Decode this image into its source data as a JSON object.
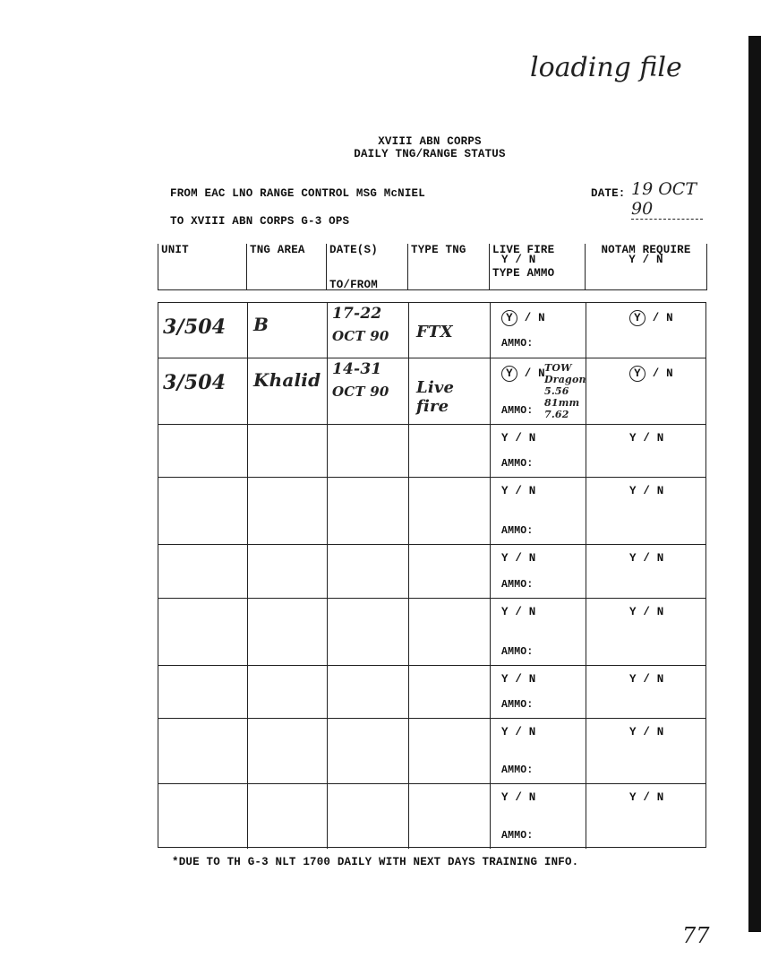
{
  "annotation_top": "loading file",
  "header": {
    "line1": "XVIII ABN CORPS",
    "line2": "DAILY TNG/RANGE STATUS"
  },
  "from": "FROM EAC LNO RANGE CONTROL MSG McNIEL",
  "to": "TO XVIII ABN CORPS G-3 OPS",
  "date_label": "DATE:",
  "date_value": "19 OCT 90",
  "columns": [
    {
      "line1": "UNIT",
      "line2": "",
      "line3": ""
    },
    {
      "line1": "TNG AREA",
      "line2": "",
      "line3": ""
    },
    {
      "line1": "DATE(S)",
      "line2": "",
      "line3": "TO/FROM"
    },
    {
      "line1": "TYPE TNG",
      "line2": "",
      "line3": ""
    },
    {
      "line1": "LIVE FIRE",
      "line2": "Y / N",
      "line3": "TYPE AMMO"
    },
    {
      "line1": "NOTAM REQUIRE",
      "line2": "Y / N",
      "line3": ""
    }
  ],
  "yn_y": "Y",
  "yn_sep": " / N",
  "ammo_label": "AMMO:",
  "rows": [
    {
      "unit": "3/504",
      "area": "B",
      "dates1": "17-22",
      "dates2": "OCT 90",
      "type": "FTX",
      "live_fire": "Y",
      "ammo": "",
      "notam": "Y"
    },
    {
      "unit": "3/504",
      "area": "Khalid",
      "dates1": "14-31",
      "dates2": "OCT 90",
      "type": "Live fire",
      "live_fire": "Y",
      "ammo": "TOW Dragon 5.56 81mm 7.62",
      "notam": "Y"
    },
    {
      "unit": "",
      "area": "",
      "dates1": "",
      "dates2": "",
      "type": "",
      "live_fire": "",
      "ammo": "",
      "notam": ""
    },
    {
      "unit": "",
      "area": "",
      "dates1": "",
      "dates2": "",
      "type": "",
      "live_fire": "",
      "ammo": "",
      "notam": ""
    },
    {
      "unit": "",
      "area": "",
      "dates1": "",
      "dates2": "",
      "type": "",
      "live_fire": "",
      "ammo": "",
      "notam": ""
    },
    {
      "unit": "",
      "area": "",
      "dates1": "",
      "dates2": "",
      "type": "",
      "live_fire": "",
      "ammo": "",
      "notam": ""
    },
    {
      "unit": "",
      "area": "",
      "dates1": "",
      "dates2": "",
      "type": "",
      "live_fire": "",
      "ammo": "",
      "notam": ""
    },
    {
      "unit": "",
      "area": "",
      "dates1": "",
      "dates2": "",
      "type": "",
      "live_fire": "",
      "ammo": "",
      "notam": ""
    },
    {
      "unit": "",
      "area": "",
      "dates1": "",
      "dates2": "",
      "type": "",
      "live_fire": "",
      "ammo": "",
      "notam": ""
    }
  ],
  "footer": "*DUE TO TH G-3 NLT 1700 DAILY WITH NEXT DAYS TRAINING INFO.",
  "page_mark": "77"
}
